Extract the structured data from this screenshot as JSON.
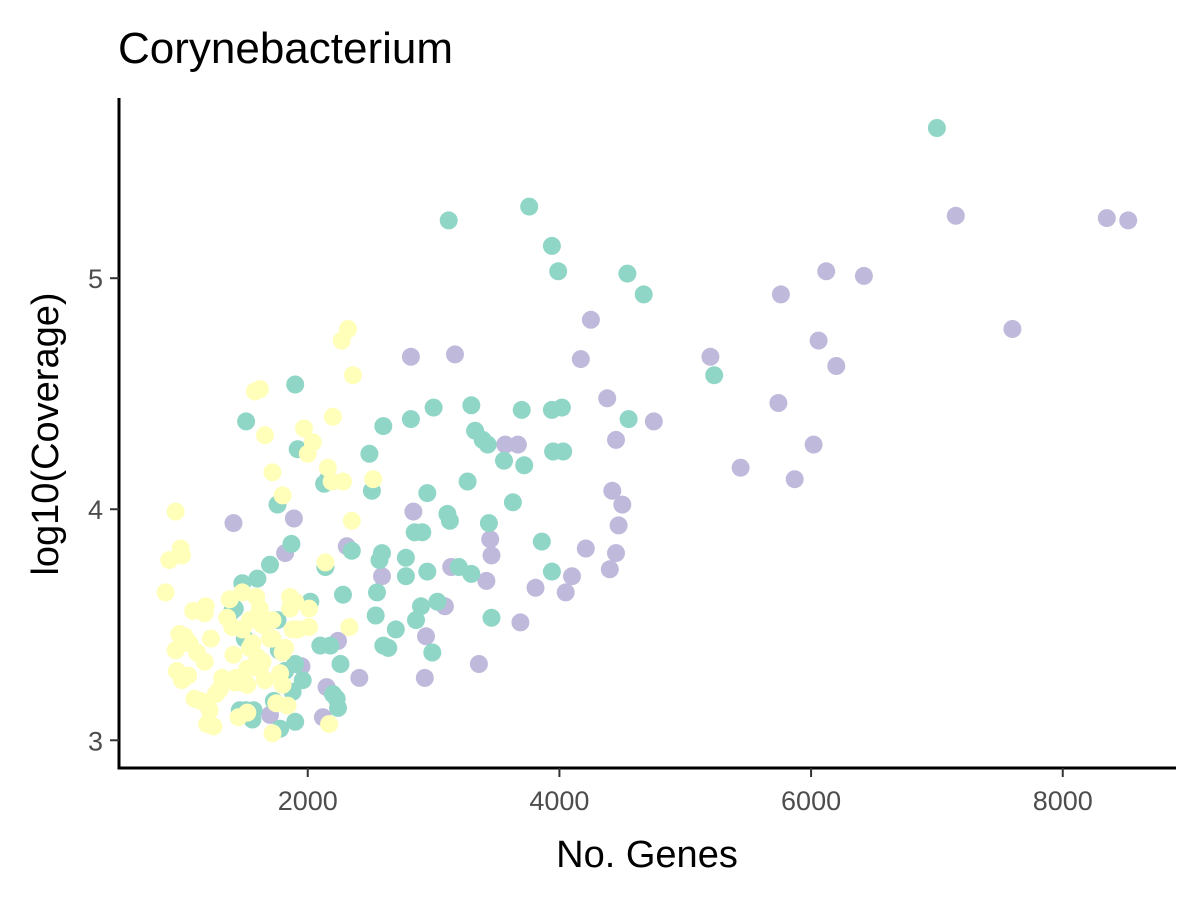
{
  "chart_data": {
    "type": "scatter",
    "title": "Corynebacterium",
    "xlabel": "No. Genes",
    "ylabel": "log10(Coverage)",
    "xlim": [
      500,
      8900
    ],
    "ylim": [
      2.88,
      5.78
    ],
    "x_ticks": [
      2000,
      4000,
      6000,
      8000
    ],
    "x_tick_labels": [
      "2000",
      "4000",
      "6000",
      "8000"
    ],
    "y_ticks": [
      3,
      4,
      5
    ],
    "y_tick_labels": [
      "3",
      "4",
      "5"
    ],
    "grid": false,
    "legend": "none",
    "colors": {
      "teal": "#8fd6c7",
      "purple": "#bfbadb",
      "yellow": "#ffffba"
    },
    "series": [
      {
        "color": "purple",
        "x": [
          7150,
          8350,
          8520,
          6120,
          6420,
          5760,
          7600,
          4250,
          6060,
          6200,
          5200,
          4170,
          4750,
          4380,
          4450,
          5740,
          3570,
          3670,
          3170,
          2820,
          6020,
          5440,
          5870,
          4420,
          4500,
          4470,
          4210,
          4450,
          4400,
          4100,
          3450,
          3460,
          3810,
          4050,
          3690,
          3090,
          2940,
          2930,
          3360,
          3140,
          2840,
          2590,
          2310,
          2240,
          1410,
          1820,
          1890,
          1950,
          2410,
          2150,
          1700,
          2120,
          3420
        ],
        "y": [
          5.27,
          5.26,
          5.25,
          5.03,
          5.01,
          4.93,
          4.78,
          4.82,
          4.73,
          4.62,
          4.66,
          4.65,
          4.38,
          4.48,
          4.3,
          4.46,
          4.28,
          4.28,
          4.67,
          4.66,
          4.28,
          4.18,
          4.13,
          4.08,
          4.02,
          3.93,
          3.83,
          3.81,
          3.74,
          3.71,
          3.87,
          3.8,
          3.66,
          3.64,
          3.51,
          3.58,
          3.45,
          3.27,
          3.33,
          3.75,
          3.99,
          3.71,
          3.84,
          3.43,
          3.94,
          3.81,
          3.96,
          3.32,
          3.27,
          3.23,
          3.11,
          3.1,
          3.69
        ]
      },
      {
        "color": "teal",
        "x": [
          7000,
          3760,
          3120,
          3940,
          3990,
          4540,
          4670,
          5230,
          4550,
          4020,
          3940,
          3700,
          3300,
          3000,
          2820,
          2600,
          2490,
          3330,
          3390,
          3430,
          3560,
          3950,
          4030,
          3720,
          3270,
          3630,
          2950,
          2510,
          2130,
          2160,
          1760,
          1510,
          1900,
          1920,
          3130,
          3110,
          3440,
          3860,
          3940,
          3200,
          3300,
          2950,
          2910,
          2850,
          2780,
          2780,
          2590,
          2570,
          2350,
          2140,
          1870,
          1700,
          1600,
          1480,
          1420,
          2540,
          2550,
          3030,
          2900,
          3460,
          2860,
          2700,
          2600,
          2640,
          2990,
          2280,
          2020,
          1760,
          1400,
          1500,
          1770,
          2180,
          2100,
          1900,
          1820,
          1880,
          1960,
          2230,
          2260,
          1730,
          1570,
          1560,
          1510,
          1460,
          1900,
          2240,
          2200,
          1780
        ],
        "y": [
          5.65,
          5.31,
          5.25,
          5.14,
          5.03,
          5.02,
          4.93,
          4.58,
          4.39,
          4.44,
          4.43,
          4.43,
          4.45,
          4.44,
          4.39,
          4.36,
          4.24,
          4.34,
          4.3,
          4.28,
          4.21,
          4.25,
          4.25,
          4.19,
          4.12,
          4.03,
          4.07,
          4.08,
          4.11,
          4.13,
          4.02,
          4.38,
          4.54,
          4.26,
          3.95,
          3.98,
          3.94,
          3.86,
          3.73,
          3.75,
          3.72,
          3.73,
          3.9,
          3.9,
          3.79,
          3.71,
          3.81,
          3.78,
          3.82,
          3.75,
          3.85,
          3.76,
          3.7,
          3.68,
          3.57,
          3.54,
          3.64,
          3.6,
          3.58,
          3.53,
          3.52,
          3.48,
          3.41,
          3.4,
          3.38,
          3.63,
          3.6,
          3.52,
          3.56,
          3.44,
          3.39,
          3.41,
          3.41,
          3.33,
          3.3,
          3.21,
          3.26,
          3.18,
          3.33,
          3.17,
          3.13,
          3.09,
          3.13,
          3.13,
          3.08,
          3.14,
          3.2,
          3.05
        ]
      },
      {
        "color": "yellow",
        "x": [
          2320,
          2270,
          2360,
          1620,
          1580,
          1660,
          2200,
          1970,
          2040,
          2000,
          2160,
          1720,
          2190,
          2280,
          1800,
          2520,
          2350,
          900,
          870,
          990,
          950,
          1000,
          1480,
          1590,
          1380,
          1400,
          1540,
          1480,
          1620,
          1720,
          1640,
          1720,
          1860,
          1860,
          1900,
          2140,
          2010,
          1920,
          1880,
          2010,
          1820,
          1800,
          1640,
          1600,
          1520,
          1490,
          1520,
          1430,
          1480,
          1420,
          1320,
          1300,
          1270,
          1220,
          1150,
          1100,
          1050,
          1000,
          960,
          1000,
          1020,
          980,
          950,
          1060,
          1120,
          1180,
          1190,
          1090,
          1180,
          1230,
          1360,
          1410,
          1600,
          1620,
          1660,
          1540,
          1560,
          1700,
          1780,
          1840,
          1520,
          1450,
          1250,
          1200,
          1720,
          1750,
          1800,
          2170,
          2330
        ],
        "y": [
          4.78,
          4.73,
          4.58,
          4.52,
          4.51,
          4.32,
          4.4,
          4.35,
          4.29,
          4.24,
          4.18,
          4.16,
          4.12,
          4.12,
          4.06,
          4.13,
          3.95,
          3.78,
          3.64,
          3.83,
          3.99,
          3.8,
          3.64,
          3.62,
          3.61,
          3.49,
          3.52,
          3.48,
          3.57,
          3.52,
          3.5,
          3.44,
          3.62,
          3.57,
          3.6,
          3.77,
          3.57,
          3.48,
          3.48,
          3.49,
          3.4,
          3.38,
          3.34,
          3.32,
          3.31,
          3.27,
          3.24,
          3.27,
          3.25,
          3.25,
          3.27,
          3.22,
          3.2,
          3.13,
          3.17,
          3.18,
          3.28,
          3.26,
          3.3,
          3.42,
          3.45,
          3.46,
          3.39,
          3.42,
          3.38,
          3.34,
          3.58,
          3.56,
          3.55,
          3.44,
          3.53,
          3.37,
          3.36,
          3.31,
          3.26,
          3.4,
          3.42,
          3.44,
          3.29,
          3.15,
          3.12,
          3.1,
          3.06,
          3.07,
          3.03,
          3.16,
          3.24,
          3.07,
          3.49
        ]
      }
    ]
  }
}
